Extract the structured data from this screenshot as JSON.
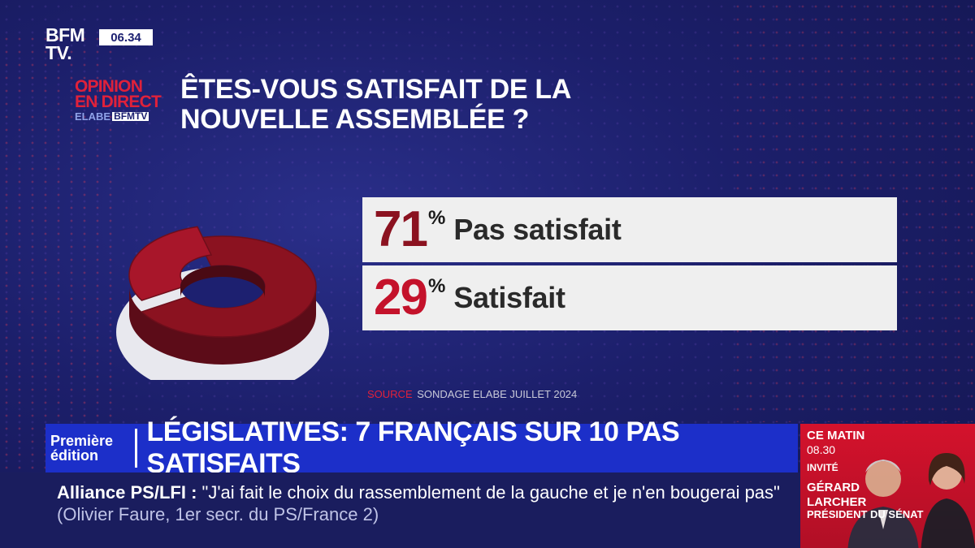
{
  "channel": {
    "logo_line1": "BFM",
    "logo_line2": "TV.",
    "time": "06.34"
  },
  "opinion": {
    "line1": "OPINION",
    "line2": "EN DIRECT",
    "elabe": "ELABE",
    "bfmtv": "BFMTV"
  },
  "question": "ÊTES-VOUS SATISFAIT DE LA NOUVELLE ASSEMBLÉE ?",
  "chart_data": {
    "type": "pie",
    "title": "ÊTES-VOUS SATISFAIT DE LA NOUVELLE ASSEMBLÉE ?",
    "categories": [
      "Pas satisfait",
      "Satisfait"
    ],
    "values": [
      71,
      29
    ],
    "value_labels": [
      "71",
      "29"
    ],
    "unit": "%",
    "colors": [
      "#8b1220",
      "#c4122b"
    ],
    "style": "3d-donut"
  },
  "source": {
    "label": "SOURCE",
    "text": "SONDAGE ELABE JUILLET 2024"
  },
  "headline": {
    "edition_line1": "Première",
    "edition_line2": "édition",
    "title": "LÉGISLATIVES: 7 FRANÇAIS SUR 10 PAS SATISFAITS"
  },
  "ticker": {
    "tag": "Alliance PS/LFI",
    "separator": ":",
    "quote": "\"J'ai fait le choix du rassemblement de la gauche et je n'en bougerai pas\"",
    "credit": "(Olivier Faure, 1er secr. du PS/France 2)"
  },
  "promo": {
    "show": "CE MATIN",
    "time": "08.30",
    "invite_label": "INVITÉ",
    "guest_line1": "GÉRARD",
    "guest_line2": "LARCHER",
    "guest_role": "PRÉSIDENT DU SÉNAT"
  },
  "colors": {
    "background": "#1c1f6b",
    "accent_red": "#e0213a",
    "banner_blue": "#1c2fc9"
  }
}
